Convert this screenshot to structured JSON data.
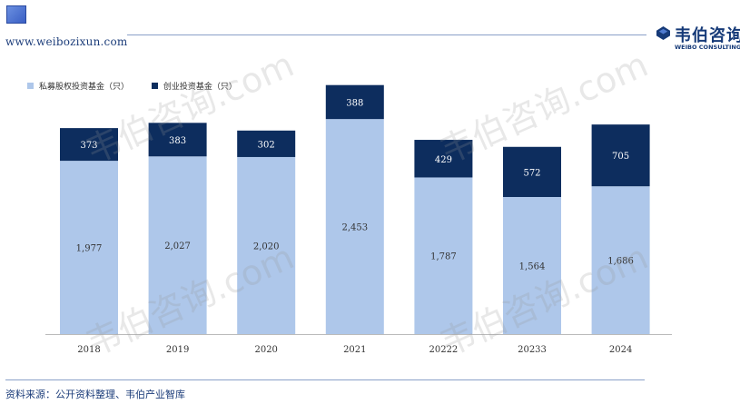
{
  "header": {
    "url": "www.weibozixun.com"
  },
  "logo": {
    "name_cn": "韦伯咨询",
    "name_en": "WEIBO CONSULTING"
  },
  "footer": {
    "source": "资料来源：公开资料整理、韦伯产业智库"
  },
  "watermark": {
    "text": "韦伯咨询.com"
  },
  "colors": {
    "private_equity": "#aec7ea",
    "venture": "#0d2d5e",
    "accent": "#163a78"
  },
  "chart_data": {
    "type": "bar",
    "stacked": true,
    "categories": [
      "2018",
      "2019",
      "2020",
      "2021",
      "20222",
      "20233",
      "2024"
    ],
    "series": [
      {
        "name": "私募股权投资基金（只）",
        "values": [
          1977,
          2027,
          2020,
          2453,
          1787,
          1564,
          1686
        ],
        "labels": [
          "1,977",
          "2,027",
          "2,020",
          "2,453",
          "1,787",
          "1,564",
          "1,686"
        ]
      },
      {
        "name": "创业投资基金（只）",
        "values": [
          373,
          383,
          302,
          388,
          429,
          572,
          705
        ],
        "labels": [
          "373",
          "383",
          "302",
          "388",
          "429",
          "572",
          "705"
        ]
      }
    ],
    "ylim": [
      0,
      2900
    ],
    "legend": "top-left",
    "grid": false
  }
}
